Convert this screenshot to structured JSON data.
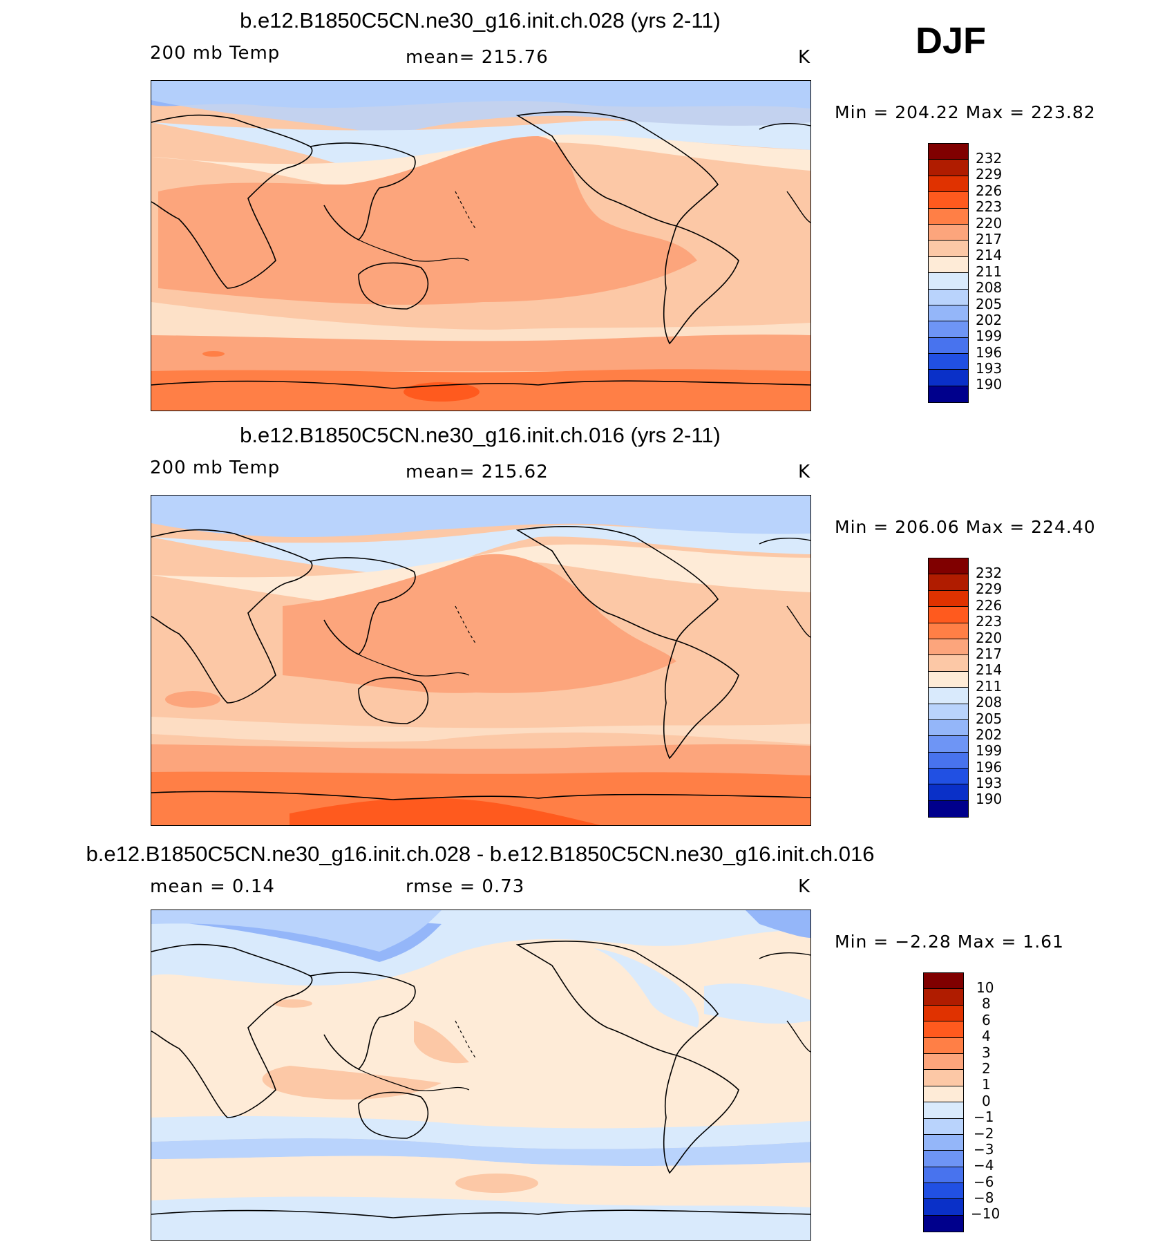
{
  "season": "DJF",
  "panels": [
    {
      "title": "b.e12.B1850C5CN.ne30_g16.init.ch.028 (yrs 2-11)",
      "left_label": "200 mb Temp",
      "center_label": "mean=  215.76",
      "units": "K",
      "minmax": "Min  =  204.22  Max  =  223.82",
      "colorbar_labels": [
        "232",
        "229",
        "226",
        "223",
        "220",
        "217",
        "214",
        "211",
        "208",
        "205",
        "202",
        "199",
        "196",
        "193",
        "190"
      ]
    },
    {
      "title": "b.e12.B1850C5CN.ne30_g16.init.ch.016 (yrs 2-11)",
      "left_label": "200 mb Temp",
      "center_label": "mean=  215.62",
      "units": "K",
      "minmax": "Min  =  206.06  Max  =  224.40",
      "colorbar_labels": [
        "232",
        "229",
        "226",
        "223",
        "220",
        "217",
        "214",
        "211",
        "208",
        "205",
        "202",
        "199",
        "196",
        "193",
        "190"
      ]
    },
    {
      "title": "b.e12.B1850C5CN.ne30_g16.init.ch.028 - b.e12.B1850C5CN.ne30_g16.init.ch.016",
      "left_label": "mean  =      0.14",
      "center_label": "rmse  =      0.73",
      "units": "K",
      "minmax": "Min  =     −2.28  Max  =      1.61",
      "colorbar_labels": [
        "10",
        "8",
        "6",
        "4",
        "3",
        "2",
        "1",
        "0",
        "−1",
        "−2",
        "−3",
        "−4",
        "−6",
        "−8",
        "−10"
      ]
    }
  ],
  "colors": {
    "colorbar": [
      "#800000",
      "#b01c00",
      "#e03200",
      "#ff5a1e",
      "#ff7f46",
      "#fca57c",
      "#fcc8a6",
      "#feebd7",
      "#d9eafc",
      "#b9d3fc",
      "#94b6f9",
      "#6e95f5",
      "#4873ee",
      "#2150e3",
      "#0a30c8",
      "#00008c"
    ]
  }
}
